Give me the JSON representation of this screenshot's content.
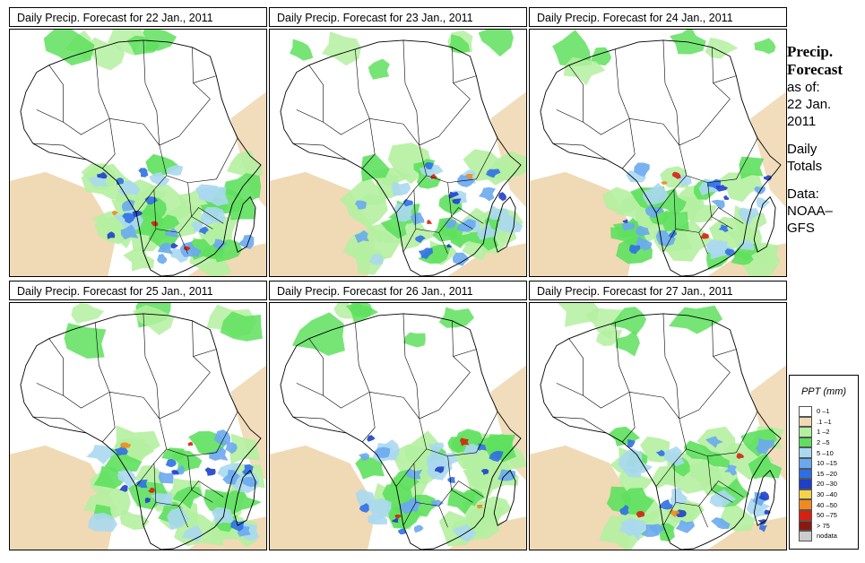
{
  "panels": [
    {
      "title": "Daily Precip. Forecast for  22 Jan., 2011",
      "seed": 11
    },
    {
      "title": "Daily Precip. Forecast for  23 Jan., 2011",
      "seed": 23
    },
    {
      "title": "Daily Precip. Forecast for  24 Jan., 2011",
      "seed": 37
    },
    {
      "title": "Daily Precip. Forecast for  25 Jan., 2011",
      "seed": 41
    },
    {
      "title": "Daily Precip. Forecast for  26 Jan., 2011",
      "seed": 53
    },
    {
      "title": "Daily Precip. Forecast for  27 Jan., 2011",
      "seed": 67
    }
  ],
  "side": {
    "title_line1": "Precip.",
    "title_line2": "Forecast",
    "asof_line1": "as of:",
    "asof_line2": "22 Jan.",
    "asof_line3": "2011",
    "totals_line1": "Daily",
    "totals_line2": "Totals",
    "data_line1": "Data:",
    "data_line2": "NOAA–",
    "data_line3": "GFS"
  },
  "legend": {
    "title": "PPT (mm)",
    "items": [
      {
        "label": "0 –1",
        "color": "#ffffff"
      },
      {
        "label": ".1 –1",
        "color": "#f0d9b5"
      },
      {
        "label": "1 –2",
        "color": "#b4f0a0"
      },
      {
        "label": "2 –5",
        "color": "#5ee05e"
      },
      {
        "label": "5 –10",
        "color": "#aad8f0"
      },
      {
        "label": "10 –15",
        "color": "#6aa8f0"
      },
      {
        "label": "15 –20",
        "color": "#2f6fe6"
      },
      {
        "label": "20 –30",
        "color": "#1e3fc8"
      },
      {
        "label": "30 –40",
        "color": "#f5d24a"
      },
      {
        "label": "40 –50",
        "color": "#f08a1e"
      },
      {
        "label": "50 –75",
        "color": "#d82010"
      },
      {
        "label": "> 75",
        "color": "#8a1a10"
      },
      {
        "label": "nodata",
        "color": "#cccccc"
      }
    ]
  }
}
